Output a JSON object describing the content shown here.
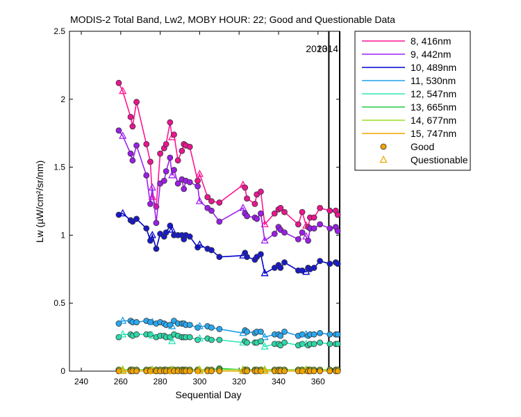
{
  "chart_data": {
    "type": "line",
    "title": "MODIS-2 Total Band,  Lw2, MOBY HOUR: 22;  Good and Questionable Data",
    "xlabel": "Sequential Day",
    "ylabel": "Lw (µW/cm²/sr/nm)",
    "xlim": [
      234,
      371
    ],
    "ylim": [
      0,
      2.5
    ],
    "xticks": [
      "240",
      "260",
      "280",
      "300",
      "320",
      "340",
      "360"
    ],
    "yticks": [
      "0",
      "0.5",
      "1",
      "1.5",
      "2",
      "2.5"
    ],
    "grid": false,
    "legend_position": "outside-right",
    "year_markers": [
      {
        "x": 365.5,
        "label": "2013"
      },
      {
        "x": 371,
        "label": "2014"
      }
    ],
    "x": [
      259,
      261,
      265,
      266,
      268,
      273,
      275,
      276,
      278,
      280,
      282,
      283,
      285,
      286,
      287,
      289,
      291,
      292,
      293,
      295,
      299,
      300,
      304,
      306,
      310,
      322,
      323,
      324,
      328,
      329,
      331,
      333,
      338,
      340,
      341,
      343,
      350,
      352,
      354,
      355,
      356,
      358,
      361,
      366,
      369,
      370
    ],
    "series": [
      {
        "name": "8, 416nm",
        "color": "#ff1493",
        "marker_color": "#e8168f",
        "values": [
          2.12,
          2.06,
          1.87,
          1.8,
          1.98,
          1.67,
          1.54,
          1.28,
          1.21,
          1.6,
          1.64,
          1.67,
          1.83,
          1.72,
          1.74,
          1.55,
          1.62,
          1.67,
          1.66,
          1.65,
          1.4,
          1.45,
          1.28,
          1.25,
          1.24,
          1.37,
          1.35,
          1.27,
          1.23,
          1.3,
          1.32,
          1.08,
          1.16,
          1.19,
          1.2,
          1.17,
          1.08,
          1.17,
          1.07,
          1.06,
          1.13,
          1.13,
          1.2,
          1.18,
          1.18,
          1.15
        ]
      },
      {
        "name": "9, 442nm",
        "color": "#a020f0",
        "marker_color": "#9b1ee6",
        "values": [
          1.77,
          1.73,
          1.6,
          1.55,
          1.66,
          1.44,
          1.23,
          1.35,
          1.09,
          1.38,
          1.4,
          1.47,
          1.57,
          1.44,
          1.48,
          1.38,
          1.41,
          1.34,
          1.4,
          1.39,
          1.36,
          1.25,
          1.2,
          1.18,
          1.1,
          1.2,
          1.16,
          1.14,
          1.13,
          1.12,
          1.16,
          0.96,
          1.01,
          1.06,
          1.04,
          1.02,
          0.97,
          1.02,
          0.99,
          0.96,
          1.05,
          1.05,
          1.08,
          1.05,
          1.06,
          1.03
        ]
      },
      {
        "name": "10, 489nm",
        "color": "#0000cd",
        "marker_color": "#1a1ac8",
        "values": [
          1.15,
          1.16,
          1.11,
          1.1,
          1.12,
          1.05,
          0.96,
          1.0,
          0.9,
          1.01,
          0.99,
          1.02,
          1.07,
          1.04,
          1.0,
          1.0,
          1.0,
          0.97,
          1.0,
          0.99,
          0.91,
          0.93,
          0.9,
          0.89,
          0.84,
          0.85,
          0.87,
          0.84,
          0.82,
          0.84,
          0.86,
          0.72,
          0.76,
          0.78,
          0.76,
          0.8,
          0.74,
          0.74,
          0.73,
          0.76,
          0.75,
          0.76,
          0.81,
          0.79,
          0.8,
          0.79
        ]
      },
      {
        "name": "11, 530nm",
        "color": "#1e9fe8",
        "marker_color": "#2aa8f0",
        "values": [
          0.35,
          0.37,
          0.37,
          0.36,
          0.36,
          0.37,
          0.36,
          0.36,
          0.35,
          0.36,
          0.35,
          0.34,
          0.34,
          0.33,
          0.37,
          0.35,
          0.35,
          0.35,
          0.34,
          0.34,
          0.32,
          0.33,
          0.33,
          0.32,
          0.31,
          0.28,
          0.3,
          0.29,
          0.28,
          0.29,
          0.29,
          0.25,
          0.27,
          0.27,
          0.26,
          0.29,
          0.26,
          0.27,
          0.27,
          0.26,
          0.27,
          0.27,
          0.28,
          0.27,
          0.27,
          0.27
        ]
      },
      {
        "name": "12, 547nm",
        "color": "#2ee6b8",
        "marker_color": "#2fd7a8",
        "values": [
          0.25,
          0.27,
          0.27,
          0.26,
          0.27,
          0.27,
          0.27,
          0.26,
          0.25,
          0.26,
          0.26,
          0.25,
          0.25,
          0.22,
          0.27,
          0.26,
          0.25,
          0.25,
          0.25,
          0.25,
          0.23,
          0.24,
          0.24,
          0.23,
          0.23,
          0.21,
          0.22,
          0.21,
          0.21,
          0.21,
          0.22,
          0.18,
          0.2,
          0.2,
          0.19,
          0.21,
          0.19,
          0.2,
          0.2,
          0.19,
          0.2,
          0.2,
          0.21,
          0.2,
          0.2,
          0.2
        ]
      },
      {
        "name": "13, 665nm",
        "color": "#22cc44",
        "marker_color": "#22cc44",
        "values": [
          0.01,
          0.01,
          0.01,
          0.01,
          0.01,
          0.01,
          0.01,
          0.01,
          0.01,
          0.01,
          0.01,
          0.01,
          0.01,
          0.01,
          0.01,
          0.01,
          0.01,
          0.01,
          0.01,
          0.01,
          0.01,
          0.01,
          0.01,
          0.01,
          0.02,
          0.01,
          0.01,
          0.01,
          0.01,
          0.01,
          0.01,
          0.01,
          0.01,
          0.01,
          0.01,
          0.01,
          0.01,
          0.01,
          0.01,
          0.01,
          0.01,
          0.01,
          0.01,
          0.01,
          0.01,
          0.01
        ]
      },
      {
        "name": "14, 677nm",
        "color": "#99dd22",
        "marker_color": "#99dd22",
        "values": [
          0.01,
          0.01,
          0.01,
          0.01,
          0.01,
          0.01,
          0.01,
          0.01,
          0.01,
          0.01,
          0.01,
          0.01,
          0.01,
          0.01,
          0.01,
          0.01,
          0.01,
          0.01,
          0.01,
          0.01,
          0.01,
          0.01,
          0.01,
          0.01,
          0.01,
          0.01,
          0.01,
          0.01,
          0.01,
          0.01,
          0.01,
          0.01,
          0.01,
          0.01,
          0.01,
          0.01,
          0.01,
          0.01,
          0.01,
          0.01,
          0.01,
          0.01,
          0.01,
          0.01,
          0.01,
          0.01
        ]
      },
      {
        "name": "15, 747nm",
        "color": "#f0a500",
        "marker_color": "#f0a500",
        "values": [
          0.0,
          0.0,
          0.0,
          0.0,
          0.0,
          0.0,
          0.0,
          0.0,
          0.0,
          0.0,
          0.0,
          0.0,
          0.0,
          0.0,
          0.0,
          0.0,
          0.0,
          0.0,
          0.0,
          0.0,
          0.0,
          0.0,
          0.0,
          0.0,
          0.0,
          0.0,
          0.0,
          0.0,
          0.0,
          0.0,
          0.0,
          0.0,
          0.0,
          0.0,
          0.0,
          0.0,
          0.0,
          0.0,
          0.0,
          0.0,
          0.0,
          0.0,
          0.0,
          0.0,
          0.0,
          0.0
        ]
      }
    ],
    "questionable_x": [
      261,
      276,
      286,
      300,
      322,
      333,
      354
    ],
    "marker_legend": [
      {
        "label": "Good",
        "marker": "circle",
        "color": "#f0a500"
      },
      {
        "label": "Questionable",
        "marker": "triangle",
        "color": "#f0a500"
      }
    ]
  }
}
